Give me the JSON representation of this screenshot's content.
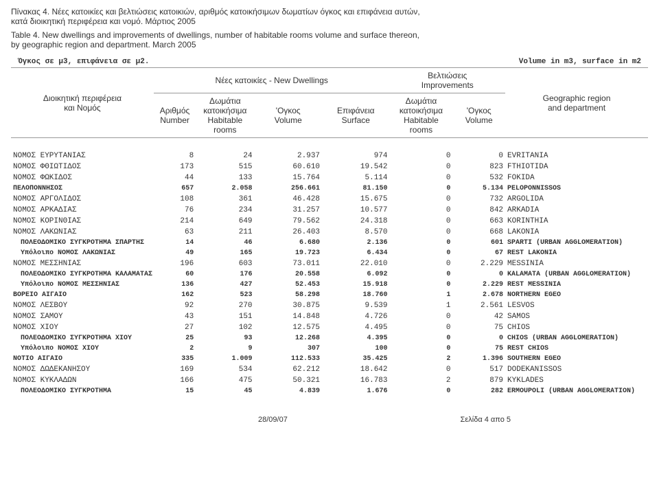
{
  "titles": {
    "gr1": "Πίνακας 4. Νέες κατοικίες και βελτιώσεις κατοικιών, αριθμός κατοικήσιμων δωματίων όγκος και επιφάνεια αυτών,",
    "gr2": "κατά διοικητική περιφέρεια και νομό. Μάρτιος 2005",
    "en1": "Table 4. New dwellings and improvements of dwellings, number of habitable rooms volume and surface thereon,",
    "en2": "by geographic region and department.  March 2005"
  },
  "units": {
    "left": "Όγκος σε μ3, επιφάνεια σε μ2.",
    "right": "Volume in m3, surface in m2"
  },
  "header": {
    "new_dwellings": "Νέες κατοικίες - New Dwellings",
    "improvements_gr": "Βελτιώσεις",
    "improvements_en": "Improvements",
    "region_gr1": "Διοικητική περιφέρεια",
    "region_gr2": "και Νομός",
    "region_en1": "Geographic region",
    "region_en2": "and department",
    "number_gr": "Αριθμός",
    "number_en": "Number",
    "rooms_gr1": "Δωμάτια",
    "rooms_gr2": "κατοικήσιμα",
    "rooms_en1": "Habitable",
    "rooms_en2": "rooms",
    "volume_gr": "'Ογκος",
    "volume_en": "Volume",
    "surface_gr": "Επιφάνεια",
    "surface_en": "Surface"
  },
  "rows": [
    {
      "gr": "ΝΟΜΟΣ ΕΥΡΥΤΑΝΙΑΣ",
      "n": "8",
      "r": "24",
      "v": "2.937",
      "s": "974",
      "ir": "0",
      "iv": "0",
      "en": "EVRITANIA",
      "cls": ""
    },
    {
      "gr": "ΝΟΜΟΣ ΦΘΙΩΤΙΔΟΣ",
      "n": "173",
      "r": "515",
      "v": "60.610",
      "s": "19.542",
      "ir": "0",
      "iv": "823",
      "en": "FTHIOTIDA",
      "cls": ""
    },
    {
      "gr": "ΝΟΜΟΣ ΦΩΚΙΔΟΣ",
      "n": "44",
      "r": "133",
      "v": "15.764",
      "s": "5.114",
      "ir": "0",
      "iv": "532",
      "en": "FOKIDA",
      "cls": ""
    },
    {
      "gr": "ΠΕΛΟΠΟΝΝΗΣΟΣ",
      "n": "657",
      "r": "2.058",
      "v": "256.661",
      "s": "81.150",
      "ir": "0",
      "iv": "5.134",
      "en": "PELOPONNISSOS",
      "cls": "bold"
    },
    {
      "gr": "ΝΟΜΟΣ ΑΡΓΟΛΙΔΟΣ",
      "n": "108",
      "r": "361",
      "v": "46.428",
      "s": "15.675",
      "ir": "0",
      "iv": "732",
      "en": "ARGOLIDA",
      "cls": ""
    },
    {
      "gr": "ΝΟΜΟΣ ΑΡΚΑΔΙΑΣ",
      "n": "76",
      "r": "234",
      "v": "31.257",
      "s": "10.577",
      "ir": "0",
      "iv": "842",
      "en": "ARKADIA",
      "cls": ""
    },
    {
      "gr": "ΝΟΜΟΣ ΚΟΡΙΝΘΙΑΣ",
      "n": "214",
      "r": "649",
      "v": "79.562",
      "s": "24.318",
      "ir": "0",
      "iv": "663",
      "en": "KORINTHIA",
      "cls": ""
    },
    {
      "gr": "ΝΟΜΟΣ ΛΑΚΩΝΙΑΣ",
      "n": "63",
      "r": "211",
      "v": "26.403",
      "s": "8.570",
      "ir": "0",
      "iv": "668",
      "en": "LAKONIA",
      "cls": ""
    },
    {
      "gr": "ΠΟΛΕΟΔΟΜΙΚΟ ΣΥΓΚΡΟΤΗΜΑ ΣΠΑΡΤΗΣ",
      "n": "14",
      "r": "46",
      "v": "6.680",
      "s": "2.136",
      "ir": "0",
      "iv": "601",
      "en": "SPARTI (URBAN AGGLOMERATION)",
      "cls": "indent"
    },
    {
      "gr": "Υπόλοιπο ΝΟΜΟΣ ΛΑΚΩΝΙΑΣ",
      "n": "49",
      "r": "165",
      "v": "19.723",
      "s": "6.434",
      "ir": "0",
      "iv": "67",
      "en": "REST LAKONIA",
      "cls": "indent"
    },
    {
      "gr": "ΝΟΜΟΣ ΜΕΣΣΗΝΙΑΣ",
      "n": "196",
      "r": "603",
      "v": "73.011",
      "s": "22.010",
      "ir": "0",
      "iv": "2.229",
      "en": "MESSINIA",
      "cls": ""
    },
    {
      "gr": "ΠΟΛΕΟΔΟΜΙΚΟ ΣΥΓΚΡΟΤΗΜΑ ΚΑΛΑΜΑΤΑΣ",
      "n": "60",
      "r": "176",
      "v": "20.558",
      "s": "6.092",
      "ir": "0",
      "iv": "0",
      "en": "KALAMATA (URBAN AGGLOMERATION)",
      "cls": "indent"
    },
    {
      "gr": "Υπόλοιπο ΝΟΜΟΣ ΜΕΣΣΗΝΙΑΣ",
      "n": "136",
      "r": "427",
      "v": "52.453",
      "s": "15.918",
      "ir": "0",
      "iv": "2.229",
      "en": "REST MESSINIA",
      "cls": "indent"
    },
    {
      "gr": "ΒΟΡΕΙΟ ΑΙΓΑΙΟ",
      "n": "162",
      "r": "523",
      "v": "58.298",
      "s": "18.760",
      "ir": "1",
      "iv": "2.678",
      "en": "NORTHERN  EGEO",
      "cls": "bold"
    },
    {
      "gr": "ΝΟΜΟΣ ΛΕΣΒΟΥ",
      "n": "92",
      "r": "270",
      "v": "30.875",
      "s": "9.539",
      "ir": "1",
      "iv": "2.561",
      "en": "LESVOS",
      "cls": ""
    },
    {
      "gr": "ΝΟΜΟΣ ΣΑΜΟΥ",
      "n": "43",
      "r": "151",
      "v": "14.848",
      "s": "4.726",
      "ir": "0",
      "iv": "42",
      "en": "SAMOS",
      "cls": ""
    },
    {
      "gr": "ΝΟΜΟΣ ΧΙΟΥ",
      "n": "27",
      "r": "102",
      "v": "12.575",
      "s": "4.495",
      "ir": "0",
      "iv": "75",
      "en": "CHIOS",
      "cls": ""
    },
    {
      "gr": "ΠΟΛΕΟΔΟΜΙΚΟ ΣΥΓΚΡΟΤΗΜΑ ΧΙΟΥ",
      "n": "25",
      "r": "93",
      "v": "12.268",
      "s": "4.395",
      "ir": "0",
      "iv": "0",
      "en": "CHIOS (URBAN AGGLOMERATION)",
      "cls": "indent"
    },
    {
      "gr": "Υπόλοιπο ΝΟΜΟΣ ΧΙΟΥ",
      "n": "2",
      "r": "9",
      "v": "307",
      "s": "100",
      "ir": "0",
      "iv": "75",
      "en": "REST CHIOS",
      "cls": "indent"
    },
    {
      "gr": "ΝΟΤΙΟ ΑΙΓΑΙΟ",
      "n": "335",
      "r": "1.009",
      "v": "112.533",
      "s": "35.425",
      "ir": "2",
      "iv": "1.396",
      "en": "SOUTHERN  EGEO",
      "cls": "bold"
    },
    {
      "gr": "ΝΟΜΟΣ ΔΩΔΕΚΑΝΗΣΟΥ",
      "n": "169",
      "r": "534",
      "v": "62.212",
      "s": "18.642",
      "ir": "0",
      "iv": "517",
      "en": "DODEKANISSOS",
      "cls": ""
    },
    {
      "gr": "ΝΟΜΟΣ ΚΥΚΛΑΔΩΝ",
      "n": "166",
      "r": "475",
      "v": "50.321",
      "s": "16.783",
      "ir": "2",
      "iv": "879",
      "en": "KYKLADES",
      "cls": ""
    },
    {
      "gr": "ΠΟΛΕΟΔΟΜΙΚΟ ΣΥΓΚΡΟΤΗΜΑ",
      "n": "15",
      "r": "45",
      "v": "4.839",
      "s": "1.676",
      "ir": "0",
      "iv": "282",
      "en": "ERMOUPOLI (URBAN AGGLOMERATION)",
      "cls": "indent"
    }
  ],
  "footer": {
    "date": "28/09/07",
    "page": "Σελίδα 4 απο 5"
  },
  "col_widths": [
    "190",
    "56",
    "78",
    "90",
    "90",
    "84",
    "70",
    "190"
  ]
}
